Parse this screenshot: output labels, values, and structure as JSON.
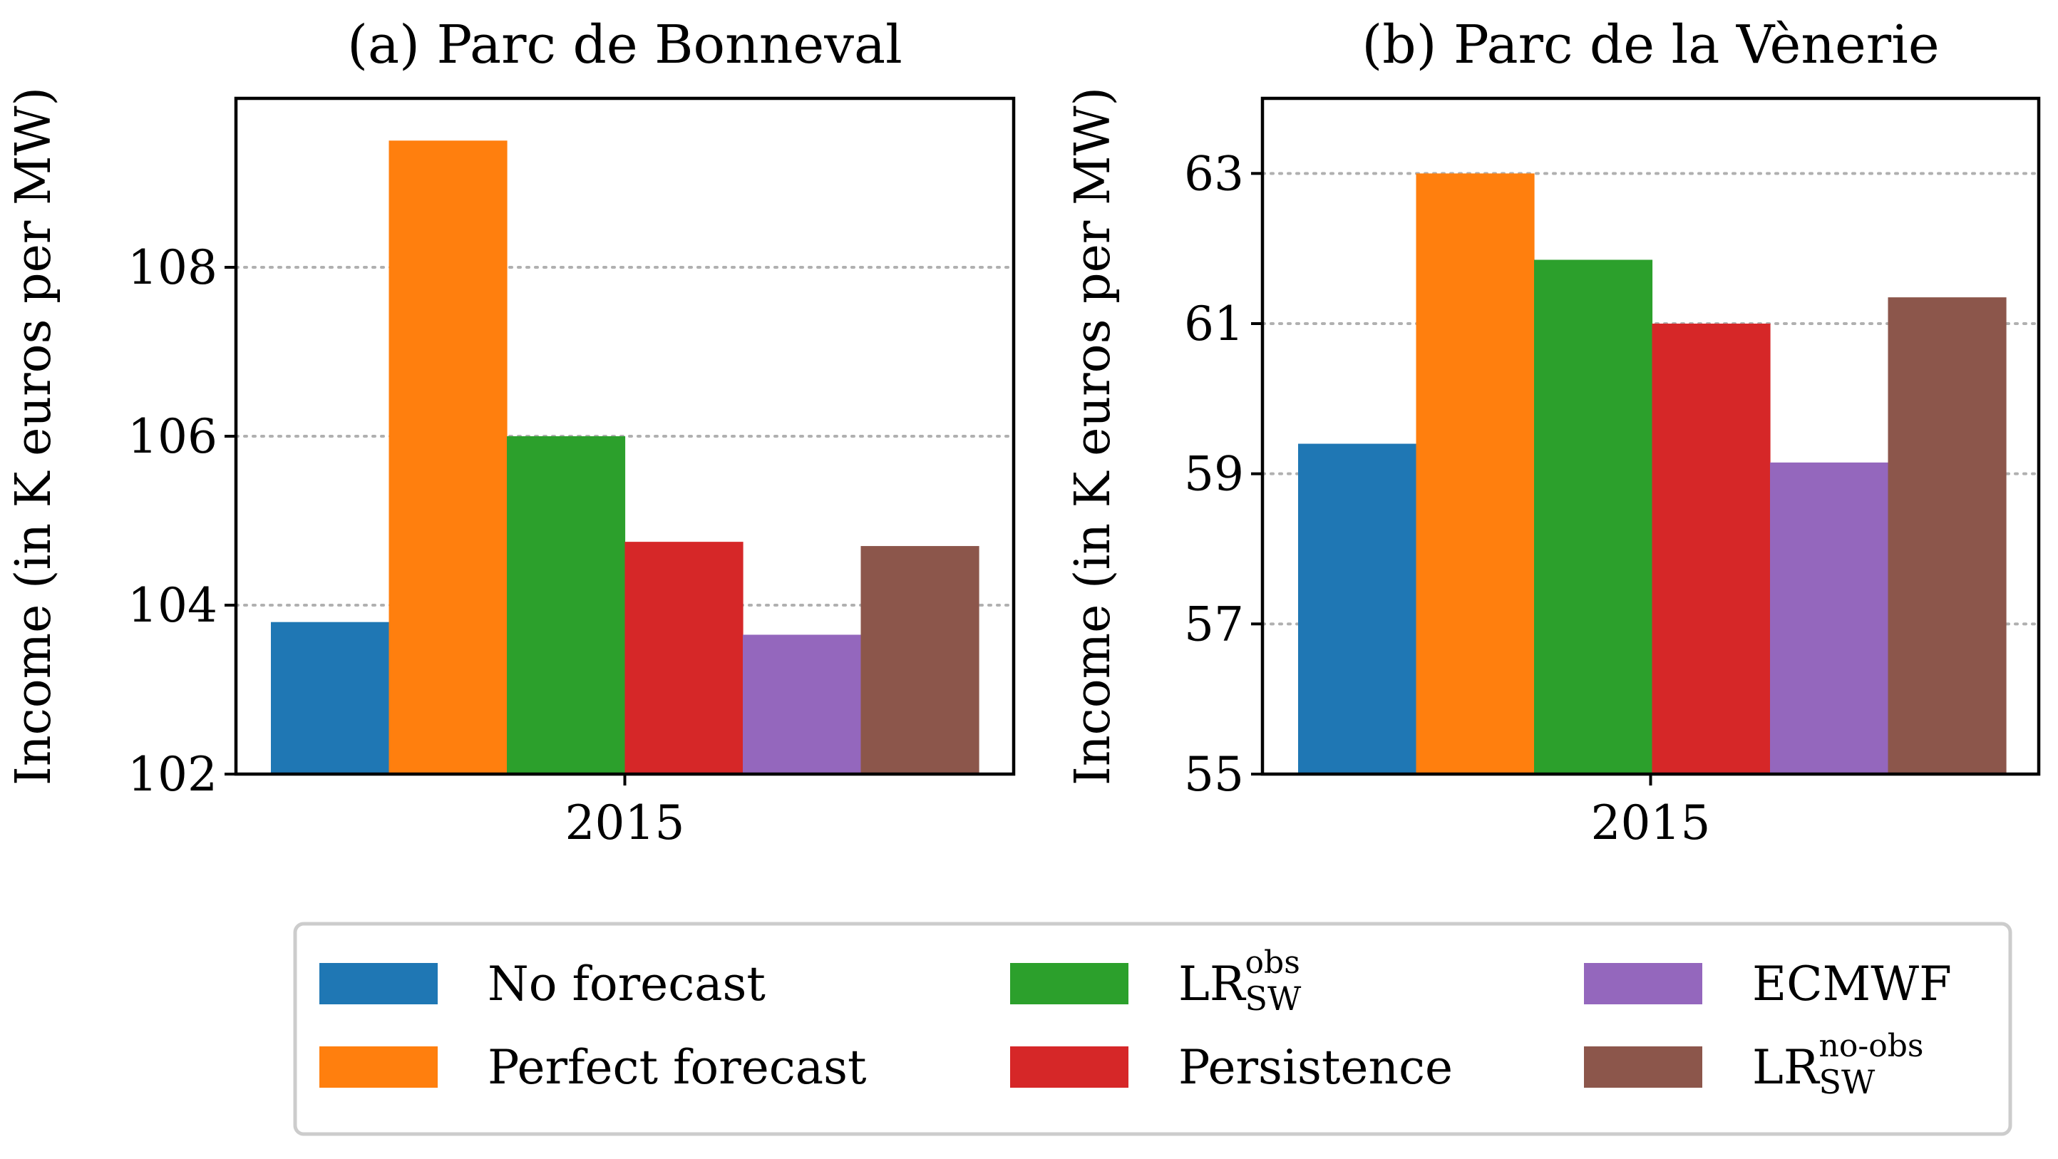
{
  "chart_data": [
    {
      "type": "bar",
      "title": "(a) Parc de Bonneval",
      "ylabel": "Income (in K euros per MW)",
      "xlabel": "",
      "categories": [
        "2015"
      ],
      "ylim": [
        102,
        110
      ],
      "yticks": [
        "102",
        "104",
        "106",
        "108"
      ],
      "grid": "y-dotted",
      "series": [
        {
          "name": "No forecast",
          "values": [
            103.8
          ]
        },
        {
          "name": "Perfect forecast",
          "values": [
            109.5
          ]
        },
        {
          "name": "LR_SW^obs",
          "values": [
            106.0
          ]
        },
        {
          "name": "Persistence",
          "values": [
            104.75
          ]
        },
        {
          "name": "ECMWF",
          "values": [
            103.65
          ]
        },
        {
          "name": "LR_SW^no-obs",
          "values": [
            104.7
          ]
        }
      ]
    },
    {
      "type": "bar",
      "title": "(b) Parc de la Vènerie",
      "ylabel": "Income (in K euros per MW)",
      "xlabel": "",
      "categories": [
        "2015"
      ],
      "ylim": [
        55,
        64
      ],
      "yticks": [
        "55",
        "57",
        "59",
        "61",
        "63"
      ],
      "grid": "y-dotted",
      "series": [
        {
          "name": "No forecast",
          "values": [
            59.4
          ]
        },
        {
          "name": "Perfect forecast",
          "values": [
            63.0
          ]
        },
        {
          "name": "LR_SW^obs",
          "values": [
            61.85
          ]
        },
        {
          "name": "Persistence",
          "values": [
            61.0
          ]
        },
        {
          "name": "ECMWF",
          "values": [
            59.15
          ]
        },
        {
          "name": "LR_SW^no-obs",
          "values": [
            61.35
          ]
        }
      ]
    }
  ],
  "colors": [
    "#1f77b4",
    "#ff7f0e",
    "#2ca02c",
    "#d62728",
    "#9467bd",
    "#8c564b"
  ],
  "legend": {
    "placement": "bottom",
    "items": [
      {
        "base": "No forecast",
        "sub": "",
        "sup": ""
      },
      {
        "base": "Perfect forecast",
        "sub": "",
        "sup": ""
      },
      {
        "base": "LR",
        "sub": "SW",
        "sup": "obs"
      },
      {
        "base": "Persistence",
        "sub": "",
        "sup": ""
      },
      {
        "base": "ECMWF",
        "sub": "",
        "sup": ""
      },
      {
        "base": "LR",
        "sub": "SW",
        "sup": "no-obs"
      }
    ]
  }
}
